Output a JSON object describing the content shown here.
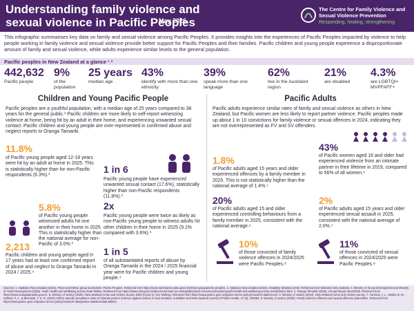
{
  "header": {
    "title": "Understanding family violence and sexual violence in Pacific Peoples",
    "date": "May 2026",
    "org_name": "The Centre for Family Violence and Sexual Violence Prevention",
    "tagline": "Responding, healing, strengthening"
  },
  "intro": "This infographic summarises key data on family and sexual violence among Pacific Peoples. It provides insights into the experiences of Pacific Peoples impacted by violence to help people working in family violence and sexual violence provide better support for Pacific Peoples and their families. Pacific children and young people experience a disproportionate amount of family and sexual violence, while adults experience similar levels to the general population.",
  "glance": {
    "heading": "Pacific peoples in New Zealand at a glance ¹˒²",
    "stats": [
      {
        "value": "442,632",
        "label": "Pacific people"
      },
      {
        "value": "9%",
        "label": "of the population"
      },
      {
        "value": "25 years",
        "label": "median age"
      },
      {
        "value": "43%",
        "label": "identify with more than one ethnicity"
      },
      {
        "value": "39%",
        "label": "speak more than one language"
      },
      {
        "value": "62%",
        "label": "live in the Auckland region"
      },
      {
        "value": "21%",
        "label": "are disabled"
      },
      {
        "value": "4.3%",
        "label": "are LGBTQI+ MVPFAFF+"
      }
    ]
  },
  "children": {
    "heading": "Children and Young Pacific People",
    "intro": "Pacific peoples are a youthful population, with a median age of 25 years compared to 38 years for the general public.¹ Pacific children are more likely to self-report witnessing violence at home, being hit by an adult in their home, and experiencing unwanted sexual contact. Pacific children and young people are over-represented in confirmed abuse and neglect reports to Oranga Tamariki.",
    "items": [
      {
        "stat": "11.8%",
        "text": "of Pacific young people aged 12-18 years were hit by an adult at home in 2025. This is statistically higher than for non-Pacific respondents (6.3%).³"
      },
      {
        "stat": "1 in 6",
        "text": "Pacific young people have experienced unwanted sexual contact (17.6%), statistically higher than non-Pacific respondents (11.8%).³"
      },
      {
        "stat": "5.8%",
        "text": "of Pacific young people witnessed adults hit one another in their home in 2025. This is statistically higher than the national average for non-Pacific of 3.0%.³"
      },
      {
        "stat": "2x",
        "text": "Pacific young people were twice as likely as non-Pacific young people to witness adults hit other children in their home in 2025 (9.1% compared with 3.6%).³"
      },
      {
        "stat": "2,213",
        "text": "Pacific children and young people aged 0-17 years had at least one confirmed report of abuse and neglect to Oranga Tamariki in 2024 / 2025.⁴"
      },
      {
        "stat": "1 in 5",
        "text": "of all substantiated reports of abuse by Oranga Tamariki in the 2024 / 2025 financial year were for Pacific children and young people.⁴"
      }
    ]
  },
  "adults": {
    "heading": "Pacific Adults",
    "intro": "Pacific adults experience similar rates of family and sexual violence as others in New Zealand, but Pacific women are less likely to report partner violence. Pacific peoples made up about 1 in 10 convictions for family violence or sexual offences in 2024, indicating they are not overrepresented as FV and SV offenders.",
    "items": [
      {
        "stat": "1.8%",
        "text": "of Pacific adults aged 15 years and older experienced offences by a family member in 2025. This is not statistically higher than the national average of 1.4%.⁵"
      },
      {
        "stat": "43%",
        "text": "of Pacific women aged 16 and older had experienced violence from an intimate partner in their lifetime in 2019, compared to 56% of all women.⁶"
      },
      {
        "stat": "20%",
        "text": "of Pacific adults aged 15 and older experienced controlling behaviours from a family member in 2025, consistent with the national average.⁶"
      },
      {
        "stat": "2%",
        "text": "of Pacific adults aged 15 years and older experienced sexual assault in 2025, consistent with the national average of 2.0%.⁵"
      },
      {
        "stat": "10%",
        "text": "of those convicted of family violence offences in 2024/2025 were Pacific Peoples.⁸"
      },
      {
        "stat": "11%",
        "text": "of those convicted of sexual offences in 2024/2025 were Pacific Peoples.⁸"
      }
    ]
  },
  "sources": "Sources: 1. Statistics New Zealand (2024). Place and Ethnic group summaries: Pacific Peoples. Retrieved from https://tools.summaries.stats.govt.nz/ethnic-group/pacific-peoples. 2. Statistics New Zealand (2024). Disability Statistics 2023. Retrieved from Statistics New Zealand. 3. Ministry of Social Development and Ministry of Youth Development (2025). Youth Health and Wellbeing Survey Data Tables. Retrieved from https://www.msd.govt.nz/about-msd-and-our-work/publications-resources/research/youth-health-and-wellbeing-survey-results/index.html. 4. Oranga Tamariki (2025). Annual Report 2024/2025. Retrieved from https://www.orangatamariki.govt.nz. 5. Ministry of Justice (2025). New Zealand Crime and Victims Survey 2025 (Cycle 6): Key findings. Retrieved from https://www.justice.govt.nz/justice-sector-policy/research-data/nzcvs/. 6. Ministry of Justice (2024). New Zealand Crime and Victims Survey. 7. Fanslow, J. L., Mellar, B. M., Gulliver, P. J., & McIntosh, T. K. D. (2023). Ethnic-specific prevalence rates of intimate partner violence against women in New Zealand. Australian and New Zealand Journal of Public Health, 47 (5), 100083. 8. Ministry of Justice (2025). Family violence offences and sexual offences data tables. Retrieved from https://www.justice.govt.nz/justice-sector-policy/research-data/justice-statistics/data-tables/."
}
